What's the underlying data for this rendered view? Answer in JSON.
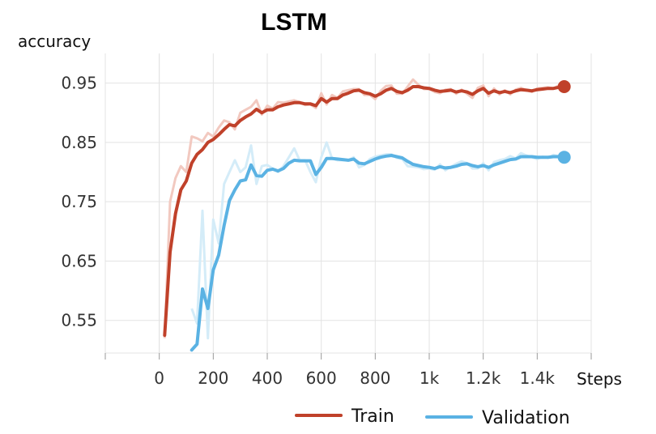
{
  "chart_data": {
    "type": "line",
    "title": "LSTM",
    "ylabel": "accuracy",
    "xlabel": "Steps",
    "xlim": [
      -200,
      1600
    ],
    "ylim": [
      0.495,
      1.0
    ],
    "x_ticks": [
      0,
      200,
      400,
      600,
      800,
      1000,
      1200,
      1400
    ],
    "x_tick_labels": [
      "0",
      "200",
      "400",
      "600",
      "800",
      "1k",
      "1.2k",
      "1.4k"
    ],
    "y_ticks": [
      0.55,
      0.65,
      0.75,
      0.85,
      0.95
    ],
    "y_tick_labels": [
      "0.55",
      "0.65",
      "0.75",
      "0.85",
      "0.95"
    ],
    "grid": true,
    "legend_position": "bottom-right",
    "series": [
      {
        "name": "Train",
        "color": "#c0412a",
        "raw_color": "#f2c9c0",
        "x": [
          20,
          40,
          60,
          80,
          100,
          120,
          140,
          160,
          180,
          200,
          220,
          240,
          260,
          280,
          300,
          320,
          340,
          360,
          380,
          400,
          420,
          440,
          460,
          480,
          500,
          520,
          540,
          560,
          580,
          600,
          620,
          640,
          660,
          680,
          700,
          720,
          740,
          760,
          780,
          800,
          820,
          840,
          860,
          880,
          900,
          920,
          940,
          960,
          980,
          1000,
          1020,
          1040,
          1060,
          1080,
          1100,
          1120,
          1140,
          1160,
          1180,
          1200,
          1220,
          1240,
          1260,
          1280,
          1300,
          1320,
          1340,
          1360,
          1380,
          1400,
          1420,
          1440,
          1460,
          1480,
          1500
        ],
        "smoothed": [
          0.525,
          0.665,
          0.73,
          0.77,
          0.785,
          0.815,
          0.83,
          0.838,
          0.85,
          0.855,
          0.863,
          0.872,
          0.88,
          0.878,
          0.887,
          0.893,
          0.898,
          0.906,
          0.9,
          0.905,
          0.905,
          0.91,
          0.913,
          0.915,
          0.917,
          0.917,
          0.915,
          0.915,
          0.912,
          0.924,
          0.918,
          0.924,
          0.924,
          0.93,
          0.933,
          0.937,
          0.938,
          0.934,
          0.932,
          0.928,
          0.932,
          0.938,
          0.941,
          0.936,
          0.934,
          0.938,
          0.944,
          0.944,
          0.942,
          0.941,
          0.938,
          0.936,
          0.937,
          0.938,
          0.935,
          0.937,
          0.935,
          0.931,
          0.937,
          0.941,
          0.933,
          0.937,
          0.934,
          0.936,
          0.934,
          0.937,
          0.939,
          0.938,
          0.937,
          0.939,
          0.94,
          0.941,
          0.941,
          0.943,
          0.944
        ],
        "raw": [
          0.52,
          0.75,
          0.79,
          0.81,
          0.8,
          0.86,
          0.857,
          0.852,
          0.866,
          0.86,
          0.875,
          0.887,
          0.884,
          0.872,
          0.9,
          0.905,
          0.91,
          0.921,
          0.897,
          0.912,
          0.907,
          0.918,
          0.917,
          0.919,
          0.921,
          0.918,
          0.913,
          0.914,
          0.908,
          0.933,
          0.914,
          0.93,
          0.925,
          0.936,
          0.938,
          0.94,
          0.94,
          0.93,
          0.93,
          0.923,
          0.937,
          0.945,
          0.946,
          0.932,
          0.932,
          0.944,
          0.956,
          0.947,
          0.94,
          0.94,
          0.935,
          0.933,
          0.939,
          0.94,
          0.932,
          0.939,
          0.932,
          0.925,
          0.942,
          0.946,
          0.928,
          0.941,
          0.931,
          0.938,
          0.931,
          0.939,
          0.942,
          0.938,
          0.935,
          0.941,
          0.942,
          0.943,
          0.941,
          0.946,
          0.945
        ],
        "final_value": 0.944
      },
      {
        "name": "Validation",
        "color": "#5ab2e3",
        "raw_color": "#d4ecf8",
        "x": [
          120,
          140,
          160,
          180,
          200,
          220,
          240,
          260,
          280,
          300,
          320,
          340,
          360,
          380,
          400,
          420,
          440,
          460,
          480,
          500,
          520,
          540,
          560,
          580,
          600,
          620,
          640,
          660,
          680,
          700,
          720,
          740,
          760,
          780,
          800,
          820,
          840,
          860,
          880,
          900,
          920,
          940,
          960,
          980,
          1000,
          1020,
          1040,
          1060,
          1080,
          1100,
          1120,
          1140,
          1160,
          1180,
          1200,
          1220,
          1240,
          1260,
          1280,
          1300,
          1320,
          1340,
          1360,
          1380,
          1400,
          1420,
          1440,
          1460,
          1480,
          1500
        ],
        "smoothed": [
          0.5,
          0.51,
          0.603,
          0.57,
          0.635,
          0.66,
          0.71,
          0.752,
          0.77,
          0.785,
          0.787,
          0.812,
          0.794,
          0.793,
          0.803,
          0.805,
          0.802,
          0.806,
          0.815,
          0.82,
          0.819,
          0.819,
          0.819,
          0.796,
          0.808,
          0.823,
          0.823,
          0.822,
          0.821,
          0.82,
          0.822,
          0.815,
          0.814,
          0.818,
          0.822,
          0.825,
          0.827,
          0.828,
          0.826,
          0.824,
          0.818,
          0.813,
          0.811,
          0.809,
          0.808,
          0.806,
          0.809,
          0.807,
          0.808,
          0.81,
          0.813,
          0.814,
          0.811,
          0.809,
          0.811,
          0.808,
          0.812,
          0.815,
          0.818,
          0.821,
          0.822,
          0.826,
          0.826,
          0.826,
          0.825,
          0.825,
          0.825,
          0.826,
          0.826,
          0.826
        ],
        "raw": [
          0.57,
          0.545,
          0.735,
          0.52,
          0.72,
          0.68,
          0.78,
          0.8,
          0.82,
          0.8,
          0.808,
          0.845,
          0.78,
          0.81,
          0.812,
          0.806,
          0.8,
          0.81,
          0.825,
          0.84,
          0.82,
          0.82,
          0.8,
          0.783,
          0.825,
          0.85,
          0.823,
          0.82,
          0.82,
          0.82,
          0.825,
          0.808,
          0.812,
          0.822,
          0.826,
          0.828,
          0.83,
          0.83,
          0.824,
          0.822,
          0.81,
          0.809,
          0.808,
          0.805,
          0.806,
          0.804,
          0.813,
          0.803,
          0.809,
          0.814,
          0.818,
          0.815,
          0.806,
          0.806,
          0.815,
          0.803,
          0.817,
          0.82,
          0.822,
          0.827,
          0.823,
          0.832,
          0.828,
          0.825,
          0.822,
          0.826,
          0.824,
          0.829,
          0.827,
          0.825
        ],
        "final_value": 0.825
      }
    ]
  }
}
